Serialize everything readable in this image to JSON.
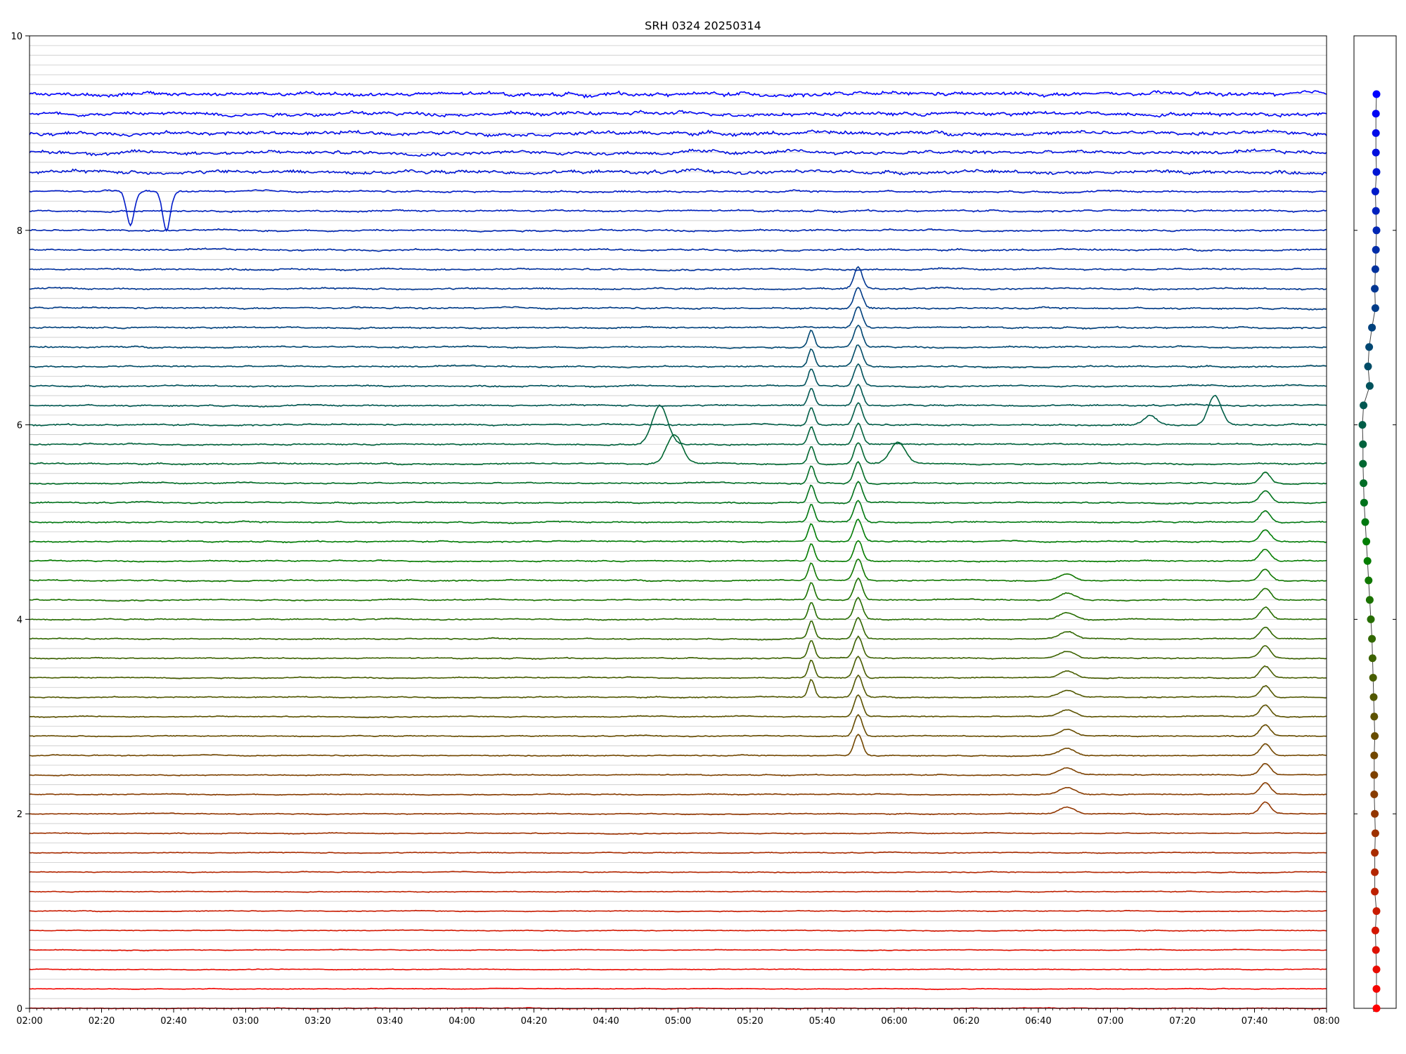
{
  "chart_data": [
    {
      "type": "line",
      "title": "SRH 0324 20250314",
      "xlabel": "",
      "ylabel": "",
      "x_range_minutes_since_0200": [
        0,
        360
      ],
      "ylim": [
        0,
        10
      ],
      "grid": "horizontal",
      "x_ticks": [
        "02:00",
        "02:20",
        "02:40",
        "03:00",
        "03:20",
        "03:40",
        "04:00",
        "04:20",
        "04:40",
        "05:00",
        "05:20",
        "05:40",
        "06:00",
        "06:20",
        "06:40",
        "07:00",
        "07:20",
        "07:40",
        "08:00"
      ],
      "y_ticks": [
        "0",
        "2",
        "4",
        "6",
        "8",
        "10"
      ],
      "channel_count": 48,
      "channel_spacing": 0.2,
      "color_start": "#ff0000",
      "color_mid": "#008000",
      "color_end": "#0000ff",
      "channel_baselines": [
        0.0,
        0.2,
        0.4,
        0.6,
        0.8,
        1.0,
        1.2,
        1.4,
        1.6,
        1.8,
        2.0,
        2.2,
        2.4,
        2.6,
        2.8,
        3.0,
        3.2,
        3.4,
        3.6,
        3.8,
        4.0,
        4.2,
        4.4,
        4.6,
        4.8,
        5.0,
        5.2,
        5.4,
        5.6,
        5.8,
        6.0,
        6.2,
        6.4,
        6.6,
        6.8,
        7.0,
        7.2,
        7.4,
        7.6,
        7.8,
        8.0,
        8.2,
        8.4,
        8.6,
        8.8,
        9.0,
        9.2,
        9.4
      ],
      "events": [
        {
          "time": "05:37",
          "amplitude": 0.18,
          "width_min": 1.2,
          "channels": "16-34"
        },
        {
          "time": "05:50",
          "amplitude": 0.22,
          "width_min": 1.6,
          "channels": "13-37"
        },
        {
          "time": "07:43",
          "amplitude": 0.12,
          "width_min": 2.0,
          "channels": "10-27"
        },
        {
          "time": "06:48",
          "amplitude": 0.07,
          "width_min": 3.0,
          "channels": "10-22"
        },
        {
          "time": "04:55",
          "amplitude": 0.4,
          "width_min": 3.0,
          "channels": "29"
        },
        {
          "time": "04:59",
          "amplitude": 0.3,
          "width_min": 3.0,
          "channels": "28"
        },
        {
          "time": "06:01",
          "amplitude": 0.22,
          "width_min": 3.0,
          "channels": "28"
        },
        {
          "time": "07:29",
          "amplitude": 0.3,
          "width_min": 2.5,
          "channels": "30"
        },
        {
          "time": "07:11",
          "amplitude": 0.1,
          "width_min": 2.5,
          "channels": "30"
        },
        {
          "time": "02:28",
          "amplitude": -0.35,
          "width_min": 1.5,
          "channels": "42"
        },
        {
          "time": "02:38",
          "amplitude": -0.4,
          "width_min": 1.5,
          "channels": "42"
        }
      ]
    },
    {
      "type": "scatter",
      "ylim": [
        0,
        10
      ],
      "y": [
        0.0,
        0.2,
        0.4,
        0.6,
        0.8,
        1.0,
        1.2,
        1.4,
        1.6,
        1.8,
        2.0,
        2.2,
        2.4,
        2.6,
        2.8,
        3.0,
        3.2,
        3.4,
        3.6,
        3.8,
        4.0,
        4.2,
        4.4,
        4.6,
        4.8,
        5.0,
        5.2,
        5.4,
        5.6,
        5.8,
        6.0,
        6.2,
        6.4,
        6.6,
        6.8,
        7.0,
        7.2,
        7.4,
        7.6,
        7.8,
        8.0,
        8.2,
        8.4,
        8.6,
        8.8,
        9.0,
        9.2,
        9.4
      ],
      "x_offsets": [
        0.0,
        0.0,
        0.0,
        -0.1,
        -0.2,
        0.0,
        -0.3,
        -0.3,
        -0.3,
        -0.2,
        -0.3,
        -0.4,
        -0.4,
        -0.4,
        -0.3,
        -0.4,
        -0.5,
        -0.6,
        -0.7,
        -0.8,
        -1.0,
        -1.2,
        -1.4,
        -1.6,
        -1.8,
        -2.0,
        -2.2,
        -2.3,
        -2.4,
        -2.4,
        -2.5,
        -2.3,
        -1.2,
        -1.5,
        -1.3,
        -0.8,
        -0.2,
        -0.3,
        -0.2,
        -0.1,
        0.0,
        -0.1,
        -0.2,
        0.0,
        -0.1,
        -0.1,
        -0.1,
        0.0
      ]
    }
  ]
}
